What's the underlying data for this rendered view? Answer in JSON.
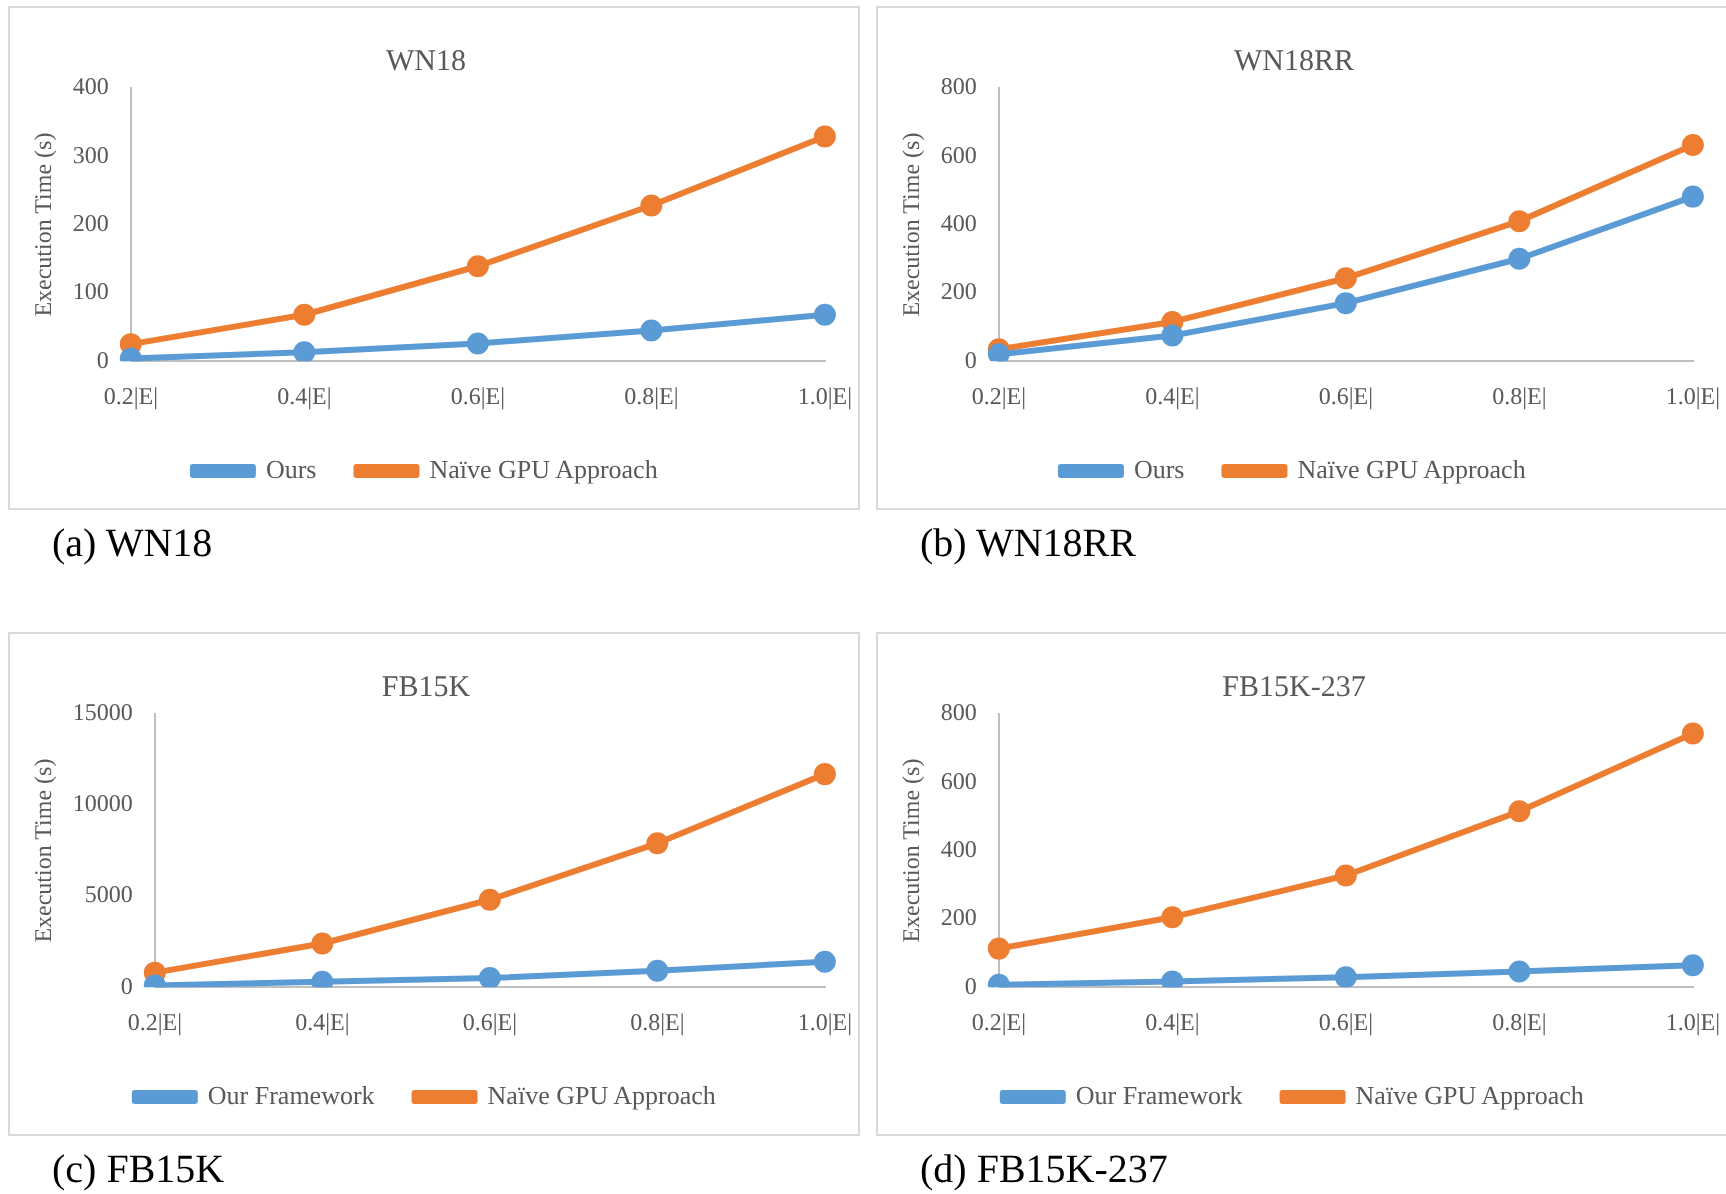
{
  "chart_data": [
    {
      "type": "line",
      "title": "WN18",
      "ylabel": "Execution Time (s)",
      "categories": [
        "0.2|E|",
        "0.4|E|",
        "0.6|E|",
        "0.8|E|",
        "1.0|E|"
      ],
      "series": [
        {
          "name": "Ours",
          "color": "#5b9bd5",
          "values": [
            4,
            13,
            26,
            45,
            68
          ]
        },
        {
          "name": "Naïve GPU Approach",
          "color": "#ed7d31",
          "values": [
            25,
            68,
            139,
            228,
            329
          ]
        }
      ],
      "ylim": [
        0,
        400
      ],
      "yticks": [
        0,
        100,
        200,
        300,
        400
      ],
      "grid": false,
      "legend": "bottom",
      "marker": "circle",
      "line_style": "solid",
      "annotations": [
        "(a) WN18"
      ]
    },
    {
      "type": "line",
      "title": "WN18RR",
      "ylabel": "Execution Time (s)",
      "categories": [
        "0.2|E|",
        "0.4|E|",
        "0.6|E|",
        "0.8|E|",
        "1.0|E|"
      ],
      "series": [
        {
          "name": "Ours",
          "color": "#5b9bd5",
          "values": [
            20,
            75,
            170,
            300,
            482
          ]
        },
        {
          "name": "Naïve GPU Approach",
          "color": "#ed7d31",
          "values": [
            35,
            115,
            243,
            410,
            633
          ]
        }
      ],
      "ylim": [
        0,
        800
      ],
      "yticks": [
        0,
        200,
        400,
        600,
        800
      ],
      "grid": false,
      "legend": "bottom",
      "marker": "circle",
      "line_style": "solid",
      "annotations": [
        "(b) WN18RR"
      ]
    },
    {
      "type": "line",
      "title": "FB15K",
      "ylabel": "Execution Time (s)",
      "categories": [
        "0.2|E|",
        "0.4|E|",
        "0.6|E|",
        "0.8|E|",
        "1.0|E|"
      ],
      "series": [
        {
          "name": "Our Framework",
          "color": "#5b9bd5",
          "values": [
            100,
            300,
            500,
            900,
            1400
          ]
        },
        {
          "name": "Naïve GPU Approach",
          "color": "#ed7d31",
          "values": [
            800,
            2400,
            4800,
            7900,
            11700
          ]
        }
      ],
      "ylim": [
        0,
        15000
      ],
      "yticks": [
        0,
        5000,
        10000,
        15000
      ],
      "grid": false,
      "legend": "bottom",
      "marker": "circle",
      "line_style": "solid",
      "annotations": [
        "(c) FB15K"
      ]
    },
    {
      "type": "line",
      "title": "FB15K-237",
      "ylabel": "Execution Time (s)",
      "categories": [
        "0.2|E|",
        "0.4|E|",
        "0.6|E|",
        "0.8|E|",
        "1.0|E|"
      ],
      "series": [
        {
          "name": "Our Framework",
          "color": "#5b9bd5",
          "values": [
            7,
            17,
            29,
            46,
            64
          ]
        },
        {
          "name": "Naïve GPU Approach",
          "color": "#ed7d31",
          "values": [
            113,
            205,
            327,
            515,
            743
          ]
        }
      ],
      "ylim": [
        0,
        800
      ],
      "yticks": [
        0,
        200,
        400,
        600,
        800
      ],
      "grid": false,
      "legend": "bottom",
      "marker": "circle",
      "line_style": "solid",
      "annotations": [
        "(d) FB15K-237"
      ]
    }
  ]
}
